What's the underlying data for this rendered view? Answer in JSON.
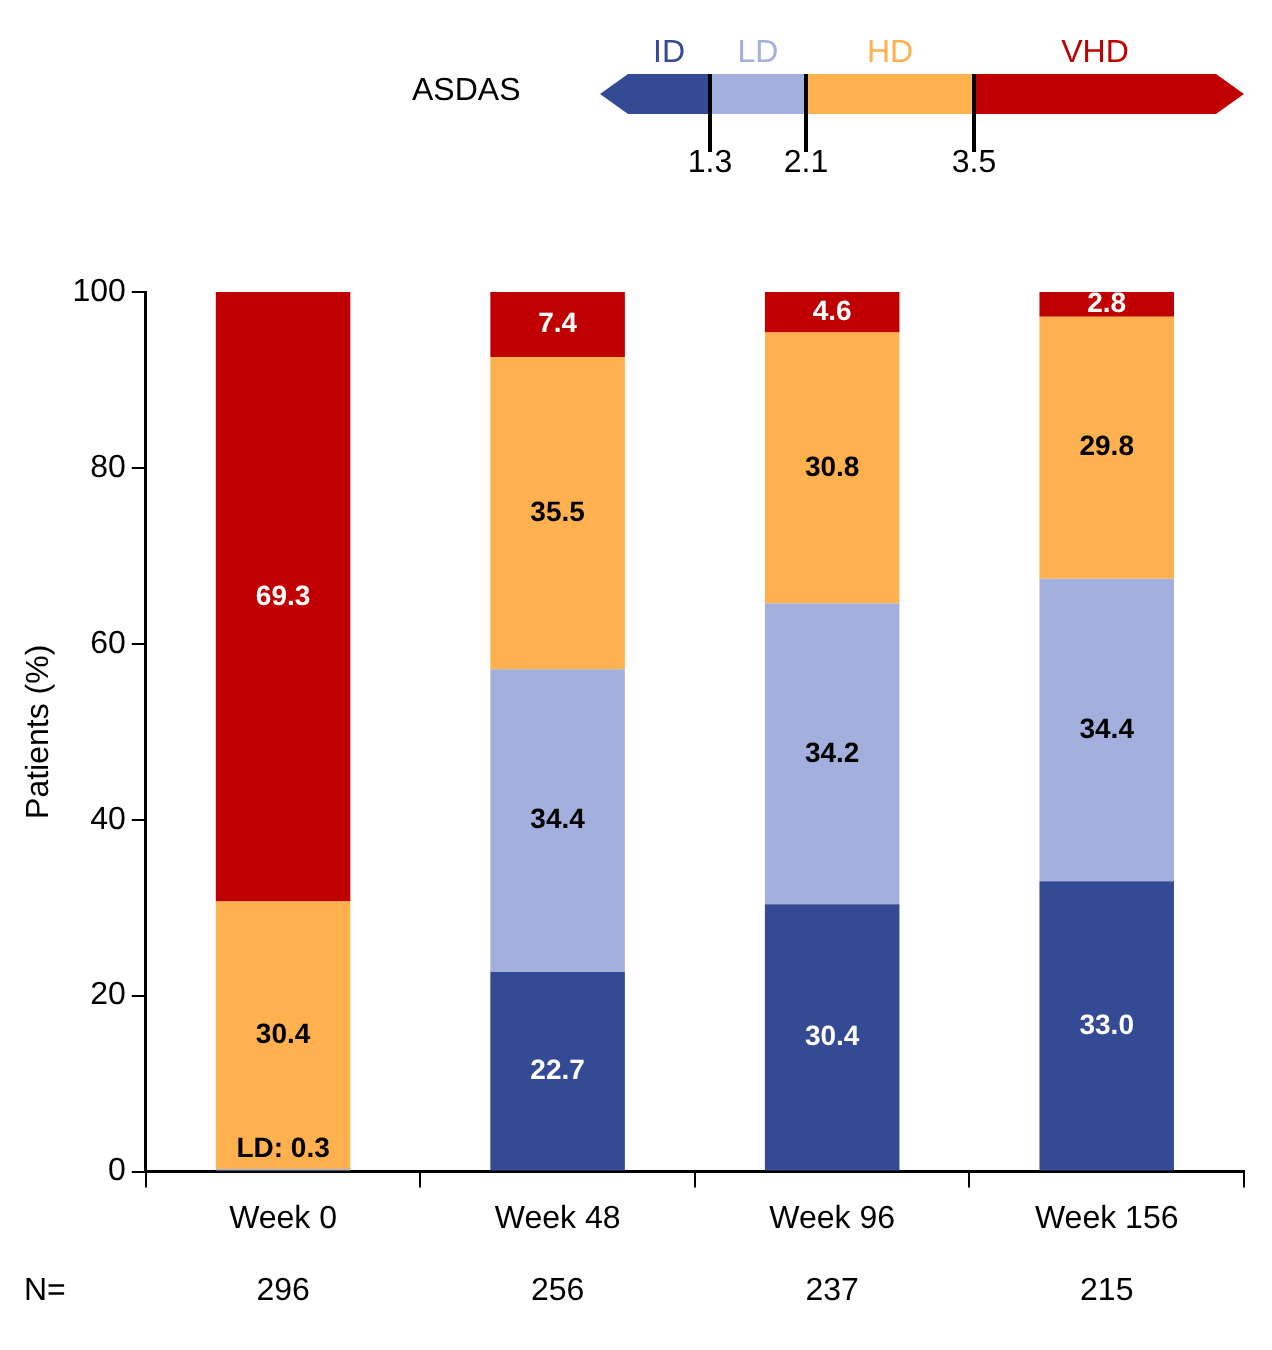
{
  "chart_data": {
    "type": "bar",
    "stacked": true,
    "legend": "top",
    "legend_title": "ASDAS",
    "ylabel": "Patients (%)",
    "categories": [
      "Week 0",
      "Week 48",
      "Week 96",
      "Week 156"
    ],
    "ylim": [
      0,
      100
    ],
    "yticks": [
      0,
      20,
      40,
      60,
      80,
      100
    ],
    "grid": false,
    "series": [
      {
        "name": "ID",
        "color": "#354a94",
        "values": [
          0,
          22.7,
          30.4,
          33.0
        ],
        "value_labels": [
          null,
          "22.7",
          "30.4",
          "33.0"
        ]
      },
      {
        "name": "LD",
        "color": "#a3b0dd",
        "values": [
          0.3,
          34.4,
          34.2,
          34.4
        ],
        "value_labels": [
          "LD: 0.3",
          "34.4",
          "34.2",
          "34.4"
        ]
      },
      {
        "name": "HD",
        "color": "#ffb04f",
        "values": [
          30.4,
          35.5,
          30.8,
          29.8
        ],
        "value_labels": [
          "30.4",
          "35.5",
          "30.8",
          "29.8"
        ]
      },
      {
        "name": "VHD",
        "color": "#c00000",
        "values": [
          69.3,
          7.4,
          4.6,
          2.8
        ],
        "value_labels": [
          "69.3",
          "7.4",
          "4.6",
          "2.8"
        ]
      }
    ],
    "annotations": [
      "1.3",
      "2.1",
      "3.5",
      "N=",
      "296",
      "256",
      "237",
      "215"
    ]
  }
}
